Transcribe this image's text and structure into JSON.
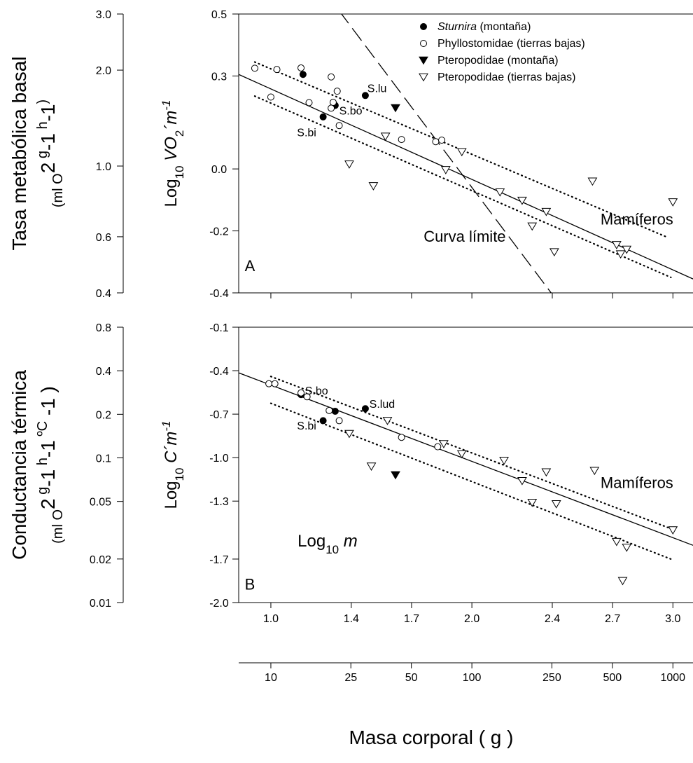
{
  "chart_data": [
    {
      "panel_label": "A",
      "type": "scatter",
      "ylabel_left": "Tasa metabólica basal (ml O2 g-1 h-1)",
      "ylabel_left_lines": [
        "Tasa metabólica basal",
        "(ml O",
        "2",
        " g",
        "-1",
        " h",
        "-1",
        ")"
      ],
      "ylabel_inner": [
        "Log",
        "10",
        "VO",
        "2",
        "´m",
        "-1"
      ],
      "yticks_left": [
        "3.0",
        "2.0",
        "1.0",
        "0.6",
        "0.4"
      ],
      "yticks_left_values": [
        3.0,
        2.0,
        1.0,
        0.6,
        0.4
      ],
      "yticks_inner": [
        "0.5",
        "0.3",
        "0.0",
        "-0.2",
        "-0.4"
      ],
      "ytick_inner_values": [
        0.5,
        0.3,
        0.0,
        -0.2,
        -0.4
      ],
      "ylim": [
        -0.4,
        0.5
      ],
      "xlim": [
        0.84,
        3.1
      ],
      "legend": {
        "position": "top-right",
        "entries": [
          {
            "marker": "filled-circle",
            "label_italic": "Sturnira",
            "label": " (montaña)"
          },
          {
            "marker": "open-circle",
            "label_italic": "",
            "label": "Phyllostomidae (tierras bajas)"
          },
          {
            "marker": "filled-triangle",
            "label_italic": "",
            "label": "Pteropodidae (montaña)"
          },
          {
            "marker": "open-triangle",
            "label_italic": "",
            "label": "Pteropodidae (tierras bajas)"
          }
        ]
      },
      "series": [
        {
          "name": "Sturnira (montaña)",
          "marker": "filled-circle",
          "points": [
            [
              1.16,
              0.305
            ],
            [
              1.26,
              0.168
            ],
            [
              1.32,
              0.205
            ],
            [
              1.47,
              0.237
            ]
          ]
        },
        {
          "name": "Phyllostomidae (tierras bajas)",
          "marker": "open-circle",
          "points": [
            [
              0.92,
              0.325
            ],
            [
              1.0,
              0.232
            ],
            [
              1.03,
              0.321
            ],
            [
              1.15,
              0.326
            ],
            [
              1.19,
              0.214
            ],
            [
              1.3,
              0.297
            ],
            [
              1.3,
              0.196
            ],
            [
              1.31,
              0.215
            ],
            [
              1.33,
              0.251
            ],
            [
              1.34,
              0.14
            ],
            [
              1.65,
              0.095
            ],
            [
              1.82,
              0.088
            ],
            [
              1.85,
              0.093
            ]
          ]
        },
        {
          "name": "Pteropodidae (montaña)",
          "marker": "filled-triangle",
          "points": [
            [
              1.62,
              0.197
            ]
          ]
        },
        {
          "name": "Pteropodidae (tierras bajas)",
          "marker": "open-triangle",
          "points": [
            [
              1.39,
              0.015
            ],
            [
              1.51,
              -0.055
            ],
            [
              1.57,
              0.105
            ],
            [
              1.87,
              -0.003
            ],
            [
              1.95,
              0.055
            ],
            [
              2.14,
              -0.075
            ],
            [
              2.25,
              -0.102
            ],
            [
              2.3,
              -0.185
            ],
            [
              2.37,
              -0.138
            ],
            [
              2.41,
              -0.268
            ],
            [
              2.6,
              -0.04
            ],
            [
              2.72,
              -0.245
            ],
            [
              2.74,
              -0.275
            ],
            [
              2.77,
              -0.26
            ],
            [
              3.0,
              -0.107
            ]
          ]
        }
      ],
      "lines": [
        {
          "style": "solid",
          "from": [
            0.84,
            0.305
          ],
          "to": [
            3.1,
            -0.355
          ]
        },
        {
          "style": "dashed",
          "from": [
            1.34,
            0.51
          ],
          "to": [
            2.4,
            -0.405
          ]
        },
        {
          "style": "dotted",
          "from": [
            0.92,
            0.345
          ],
          "to": [
            2.97,
            -0.22
          ]
        },
        {
          "style": "dotted",
          "from": [
            0.92,
            0.235
          ],
          "to": [
            2.99,
            -0.35
          ]
        }
      ],
      "annotations": [
        {
          "text": "S.lu",
          "x": 1.48,
          "y": 0.248,
          "size": "small"
        },
        {
          "text": "S.bo",
          "x": 1.34,
          "y": 0.175,
          "size": "small"
        },
        {
          "text": "S.bi",
          "x": 1.13,
          "y": 0.105,
          "size": "small"
        },
        {
          "text": "Curva límite",
          "x": 1.76,
          "y": -0.235,
          "size": "large"
        },
        {
          "text": "Mamíferos",
          "x": 2.64,
          "y": -0.18,
          "size": "large"
        },
        {
          "text": "A",
          "x": 0.87,
          "y": -0.33,
          "size": "large"
        }
      ]
    },
    {
      "panel_label": "B",
      "type": "scatter",
      "ylabel_left": "Conductancia térmica (ml O2 g-1 h-1 ºC -1 )",
      "ylabel_left_lines": [
        "Conductancia térmica",
        "(ml O",
        "2",
        " g",
        "-1",
        " h",
        "-1",
        " ºC",
        " -1",
        " )"
      ],
      "ylabel_inner": [
        "Log",
        "10",
        "C",
        "´m",
        "-1"
      ],
      "yticks_left": [
        "0.8",
        "0.4",
        "0.2",
        "0.1",
        "0.05",
        "0.02",
        "0.01"
      ],
      "yticks_left_values": [
        0.8,
        0.4,
        0.2,
        0.1,
        0.05,
        0.02,
        0.01
      ],
      "yticks_inner": [
        "-0.1",
        "-0.4",
        "-0.7",
        "-1.0",
        "-1.3",
        "-1.7",
        "-2.0"
      ],
      "ytick_inner_values": [
        -0.1,
        -0.4,
        -0.7,
        -1.0,
        -1.3,
        -1.7,
        -2.0
      ],
      "ylim": [
        -2.0,
        -0.1
      ],
      "xlim": [
        0.84,
        3.1
      ],
      "series": [
        {
          "name": "Sturnira (montaña)",
          "marker": "filled-circle",
          "points": [
            [
              1.15,
              -0.565
            ],
            [
              1.26,
              -0.745
            ],
            [
              1.32,
              -0.68
            ],
            [
              1.47,
              -0.662
            ]
          ]
        },
        {
          "name": "Phyllostomidae (tierras bajas)",
          "marker": "open-circle",
          "points": [
            [
              0.99,
              -0.49
            ],
            [
              1.02,
              -0.49
            ],
            [
              1.15,
              -0.553
            ],
            [
              1.18,
              -0.58
            ],
            [
              1.29,
              -0.675
            ],
            [
              1.34,
              -0.745
            ],
            [
              1.65,
              -0.86
            ],
            [
              1.83,
              -0.925
            ]
          ]
        },
        {
          "name": "Pteropodidae (montaña)",
          "marker": "filled-triangle",
          "points": [
            [
              1.62,
              -1.12
            ]
          ]
        },
        {
          "name": "Pteropodidae (tierras bajas)",
          "marker": "open-triangle",
          "points": [
            [
              1.39,
              -0.835
            ],
            [
              1.5,
              -1.06
            ],
            [
              1.58,
              -0.745
            ],
            [
              1.86,
              -0.905
            ],
            [
              1.95,
              -0.975
            ],
            [
              2.16,
              -1.02
            ],
            [
              2.25,
              -1.16
            ],
            [
              2.3,
              -1.31
            ],
            [
              2.37,
              -1.1
            ],
            [
              2.42,
              -1.32
            ],
            [
              2.61,
              -1.09
            ],
            [
              2.72,
              -1.58
            ],
            [
              2.75,
              -1.85
            ],
            [
              2.77,
              -1.62
            ],
            [
              3.0,
              -1.5
            ]
          ]
        }
      ],
      "lines": [
        {
          "style": "solid",
          "from": [
            0.84,
            -0.415
          ],
          "to": [
            3.1,
            -1.605
          ]
        },
        {
          "style": "dotted",
          "from": [
            1.0,
            -0.44
          ],
          "to": [
            2.99,
            -1.49
          ]
        },
        {
          "style": "dotted",
          "from": [
            1.0,
            -0.625
          ],
          "to": [
            2.99,
            -1.7
          ]
        }
      ],
      "annotations": [
        {
          "text": "S.bo",
          "x": 1.17,
          "y": -0.565,
          "size": "small"
        },
        {
          "text": "S.lud",
          "x": 1.49,
          "y": -0.655,
          "size": "small"
        },
        {
          "text": "S.bi",
          "x": 1.13,
          "y": -0.805,
          "size": "small"
        },
        {
          "text": "Mamíferos",
          "x": 2.64,
          "y": -1.21,
          "size": "large"
        },
        {
          "text": "B",
          "x": 0.87,
          "y": -1.91,
          "size": "large"
        }
      ]
    }
  ],
  "x_axis_inner": {
    "label_parts": [
      "Log",
      "10",
      "m"
    ],
    "ticks": [
      "1.0",
      "1.4",
      "1.7",
      "2.0",
      "2.4",
      "2.7",
      "3.0"
    ],
    "tick_values": [
      1.0,
      1.4,
      1.7,
      2.0,
      2.4,
      2.7,
      3.0
    ]
  },
  "x_axis_outer": {
    "label": "Masa corporal ( g )",
    "ticks": [
      "10",
      "25",
      "50",
      "100",
      "250",
      "500",
      "1000"
    ],
    "tick_values": [
      10,
      25,
      50,
      100,
      250,
      500,
      1000
    ]
  }
}
